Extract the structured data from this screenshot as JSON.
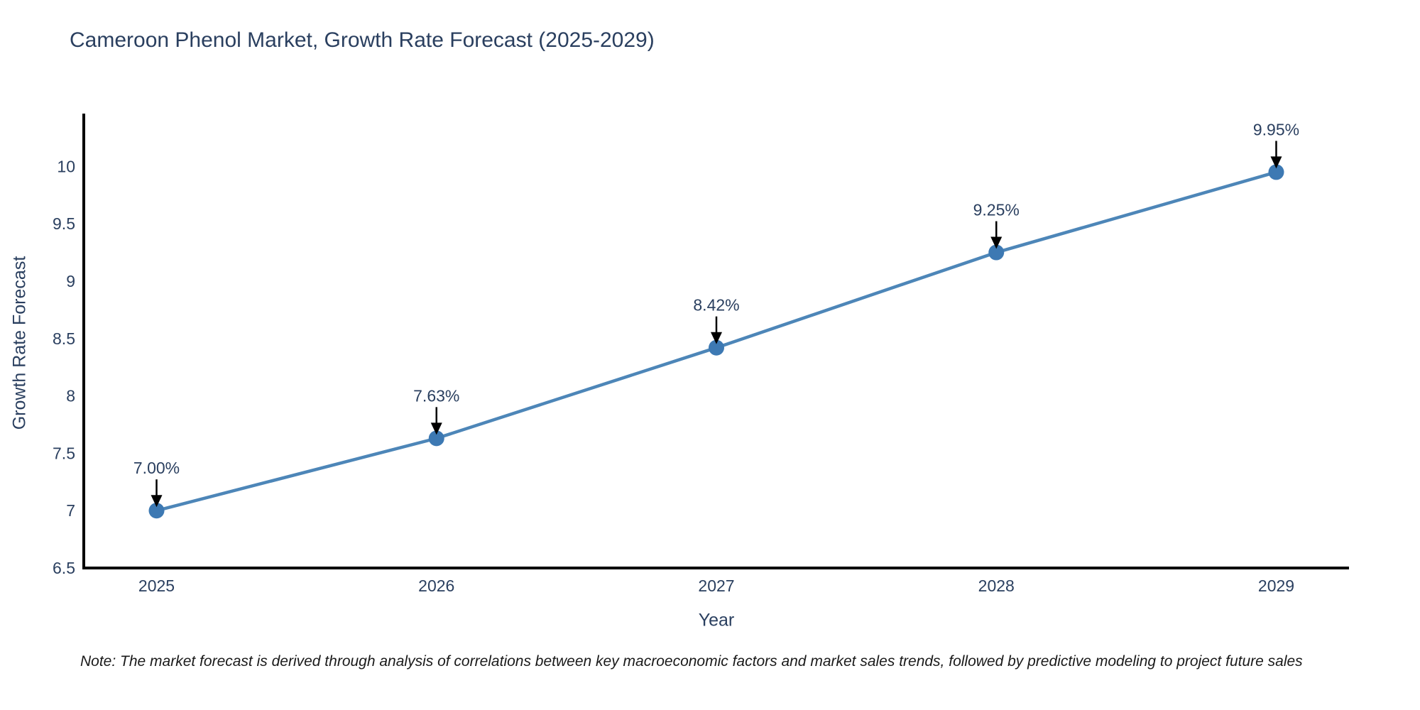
{
  "page": {
    "background": "#ffffff"
  },
  "chart_data": {
    "type": "line",
    "title": "Cameroon Phenol Market, Growth Rate Forecast (2025-2029)",
    "xlabel": "Year",
    "ylabel": "Growth Rate Forecast",
    "categories": [
      2025,
      2026,
      2027,
      2028,
      2029
    ],
    "series": [
      {
        "name": "Growth Rate Forecast",
        "values": [
          7.0,
          7.63,
          8.42,
          9.25,
          9.95
        ]
      }
    ],
    "point_labels": [
      "7.00%",
      "7.63%",
      "8.42%",
      "9.25%",
      "9.95%"
    ],
    "ytick_values": [
      6.5,
      7,
      7.5,
      8,
      8.5,
      9,
      9.5,
      10
    ],
    "ytick_labels": [
      "6.5",
      "7",
      "7.5",
      "8",
      "8.5",
      "9",
      "9.5",
      "10"
    ],
    "ylim": [
      6.5,
      10.46
    ],
    "xlim": [
      2024.74,
      2029.26
    ],
    "grid": false,
    "legend_position": "none",
    "colors": {
      "line": "#4d86b8",
      "marker": "#3d79b3",
      "axis": "#000000",
      "tick_text": "#2a3f5f",
      "annotation_text": "#2a3f5f",
      "annotation_arrow": "#000000"
    }
  },
  "footnote": {
    "text": "Note: The market forecast is derived through analysis of correlations between key macroeconomic factors and market sales trends, followed by predictive modeling to project future sales"
  }
}
